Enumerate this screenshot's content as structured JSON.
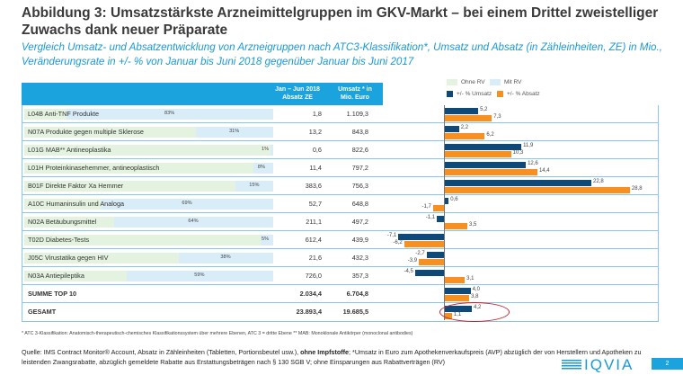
{
  "title": "Abbildung 3: Umsatzstärkste Arzneimittelgruppen im GKV-Markt – bei einem Drittel zweistelliger Zuwachs dank neuer Präparate",
  "subtitle": "Vergleich Umsatz- und Absatzentwicklung von Arzneigruppen nach ATC3-Klassifikation*, Umsatz und Absatz (in Zähleinheiten, ZE) in Mio., Veränderungsrate in +/- % von Januar bis Juni 2018 gegenüber Januar bis Juni  2017",
  "header": {
    "absatz": "Jan – Jun 2018 Absatz ZE",
    "umsatz": "Umsatz * in Mio. Euro"
  },
  "legend": {
    "ohne_rv": "Ohne RV",
    "mit_rv": "Mit RV",
    "umsatz": "+/- % Umsatz",
    "absatz": "+/- % Absatz"
  },
  "colors": {
    "umsatz": "#0d4a7a",
    "absatz": "#f7901e",
    "ohne_rv": "#e4f3e0",
    "mit_rv": "#d9edf9",
    "header": "#1aa3dc"
  },
  "chart_data": {
    "type": "bar",
    "categories": [
      "L04B  Anti-TNF Produkte",
      "N07A  Produkte gegen multiple Sklerose",
      "L01G  MAB** Antineoplastika",
      "L01H  Proteinkinasehemmer, antineoplastisch",
      "B01F  Direkte Faktor Xa Hemmer",
      "A10C  Humaninsulin und Analoga",
      "N02A  Betäubungsmittel",
      "T02D  Diabetes-Tests",
      "J05C  Virustatika gegen HIV",
      "N03A  Antiepileptika",
      "SUMME TOP 10",
      "GESAMT"
    ],
    "mit_rv_pct": [
      "83%",
      "31%",
      "1%",
      "8%",
      "15%",
      "69%",
      "64%",
      "5%",
      "38%",
      "59%",
      null,
      null
    ],
    "absatz_ze": [
      "1,8",
      "13,2",
      "0,6",
      "11,4",
      "383,6",
      "52,7",
      "211,1",
      "612,4",
      "21,6",
      "726,0",
      "2.034,4",
      "23.893,4"
    ],
    "umsatz_eur": [
      "1.109,3",
      "843,8",
      "822,6",
      "797,2",
      "756,3",
      "648,8",
      "497,2",
      "439,9",
      "432,3",
      "357,3",
      "6.704,8",
      "19.685,5"
    ],
    "series": [
      {
        "name": "+/- % Umsatz",
        "values": [
          5.2,
          2.2,
          11.9,
          12.6,
          22.8,
          0.6,
          -1.1,
          -7.1,
          -2.7,
          -4.5,
          4.0,
          4.2
        ]
      },
      {
        "name": "+/- % Absatz",
        "values": [
          7.3,
          6.2,
          10.3,
          14.4,
          28.8,
          -1.7,
          3.5,
          -6.2,
          -3.9,
          3.1,
          3.8,
          1.1
        ]
      }
    ]
  },
  "footnote": "* ATC 3-Klassifikation: Anatomisch-therapeutisch-chemisches Klassifikationssystem über mehrere Ebenen,  ATC 3 = dritte Ebene     ** MAB: Monoklonale Antikörper (monoclonal antibodies)",
  "source": {
    "part1": "Quelle: IMS Contract Monitor® Account, Absatz in Zähleinheiten (Tabletten, Portionsbeutel usw.), ",
    "bold": "ohne Impfstoffe",
    "part2": "; *Umsatz in Euro zum Apothekenverkaufspreis (AVP) abzüglich der von Herstellern und Apotheken zu leistenden Zwangsrabatte, abzüglich gemeldete Rabatte aus Erstattungsbeträgen nach § 130 SGB V; ohne Einsparungen aus Rabattverträgen (RV)"
  },
  "logo": "IQVIA",
  "page": "2"
}
